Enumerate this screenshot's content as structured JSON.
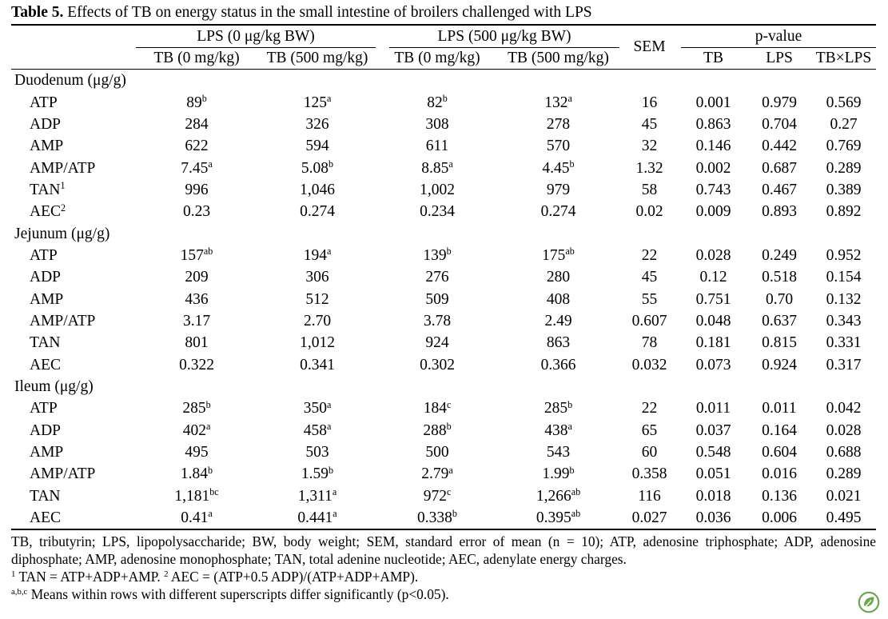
{
  "caption": {
    "label": "Table 5.",
    "text": "Effects of TB on energy status in the small intestine of broilers challenged with LPS"
  },
  "header": {
    "groups": [
      "LPS (0 μg/kg BW)",
      "LPS (500 μg/kg BW)"
    ],
    "sem": "SEM",
    "p_value": "p-value",
    "treatments": [
      "TB (0 mg/kg)",
      "TB (500 mg/kg)",
      "TB (0 mg/kg)",
      "TB (500 mg/kg)"
    ],
    "effects": [
      "TB",
      "LPS",
      "TB×LPS"
    ]
  },
  "sections": [
    {
      "name": "Duodenum (μg/g)",
      "rows": [
        {
          "label": "ATP",
          "cells": [
            {
              "v": "89",
              "sup": "b"
            },
            {
              "v": "125",
              "sup": "a"
            },
            {
              "v": "82",
              "sup": "b"
            },
            {
              "v": "132",
              "sup": "a"
            },
            {
              "v": "16"
            },
            {
              "v": "0.001"
            },
            {
              "v": "0.979"
            },
            {
              "v": "0.569"
            }
          ]
        },
        {
          "label": "ADP",
          "cells": [
            {
              "v": "284"
            },
            {
              "v": "326"
            },
            {
              "v": "308"
            },
            {
              "v": "278"
            },
            {
              "v": "45"
            },
            {
              "v": "0.863"
            },
            {
              "v": "0.704"
            },
            {
              "v": "0.27"
            }
          ]
        },
        {
          "label": "AMP",
          "cells": [
            {
              "v": "622"
            },
            {
              "v": "594"
            },
            {
              "v": "611"
            },
            {
              "v": "570"
            },
            {
              "v": "32"
            },
            {
              "v": "0.146"
            },
            {
              "v": "0.442"
            },
            {
              "v": "0.769"
            }
          ]
        },
        {
          "label": "AMP/ATP",
          "cells": [
            {
              "v": "7.45",
              "sup": "a"
            },
            {
              "v": "5.08",
              "sup": "b"
            },
            {
              "v": "8.85",
              "sup": "a"
            },
            {
              "v": "4.45",
              "sup": "b"
            },
            {
              "v": "1.32"
            },
            {
              "v": "0.002"
            },
            {
              "v": "0.687"
            },
            {
              "v": "0.289"
            }
          ]
        },
        {
          "label": "TAN",
          "label_sup": "1",
          "cells": [
            {
              "v": "996"
            },
            {
              "v": "1,046"
            },
            {
              "v": "1,002"
            },
            {
              "v": "979"
            },
            {
              "v": "58"
            },
            {
              "v": "0.743"
            },
            {
              "v": "0.467"
            },
            {
              "v": "0.389"
            }
          ]
        },
        {
          "label": "AEC",
          "label_sup": "2",
          "cells": [
            {
              "v": "0.23"
            },
            {
              "v": "0.274"
            },
            {
              "v": "0.234"
            },
            {
              "v": "0.274"
            },
            {
              "v": "0.02"
            },
            {
              "v": "0.009"
            },
            {
              "v": "0.893"
            },
            {
              "v": "0.892"
            }
          ]
        }
      ]
    },
    {
      "name": "Jejunum (μg/g)",
      "rows": [
        {
          "label": "ATP",
          "cells": [
            {
              "v": "157",
              "sup": "ab"
            },
            {
              "v": "194",
              "sup": "a"
            },
            {
              "v": "139",
              "sup": "b"
            },
            {
              "v": "175",
              "sup": "ab"
            },
            {
              "v": "22"
            },
            {
              "v": "0.028"
            },
            {
              "v": "0.249"
            },
            {
              "v": "0.952"
            }
          ]
        },
        {
          "label": "ADP",
          "cells": [
            {
              "v": "209"
            },
            {
              "v": "306"
            },
            {
              "v": "276"
            },
            {
              "v": "280"
            },
            {
              "v": "45"
            },
            {
              "v": "0.12"
            },
            {
              "v": "0.518"
            },
            {
              "v": "0.154"
            }
          ]
        },
        {
          "label": "AMP",
          "cells": [
            {
              "v": "436"
            },
            {
              "v": "512"
            },
            {
              "v": "509"
            },
            {
              "v": "408"
            },
            {
              "v": "55"
            },
            {
              "v": "0.751"
            },
            {
              "v": "0.70"
            },
            {
              "v": "0.132"
            }
          ]
        },
        {
          "label": "AMP/ATP",
          "cells": [
            {
              "v": "3.17"
            },
            {
              "v": "2.70"
            },
            {
              "v": "3.78"
            },
            {
              "v": "2.49"
            },
            {
              "v": "0.607"
            },
            {
              "v": "0.048"
            },
            {
              "v": "0.637"
            },
            {
              "v": "0.343"
            }
          ]
        },
        {
          "label": "TAN",
          "cells": [
            {
              "v": "801"
            },
            {
              "v": "1,012"
            },
            {
              "v": "924"
            },
            {
              "v": "863"
            },
            {
              "v": "78"
            },
            {
              "v": "0.181"
            },
            {
              "v": "0.815"
            },
            {
              "v": "0.331"
            }
          ]
        },
        {
          "label": "AEC",
          "cells": [
            {
              "v": "0.322"
            },
            {
              "v": "0.341"
            },
            {
              "v": "0.302"
            },
            {
              "v": "0.366"
            },
            {
              "v": "0.032"
            },
            {
              "v": "0.073"
            },
            {
              "v": "0.924"
            },
            {
              "v": "0.317"
            }
          ]
        }
      ]
    },
    {
      "name": "Ileum (μg/g)",
      "rows": [
        {
          "label": "ATP",
          "cells": [
            {
              "v": "285",
              "sup": "b"
            },
            {
              "v": "350",
              "sup": "a"
            },
            {
              "v": "184",
              "sup": "c"
            },
            {
              "v": "285",
              "sup": "b"
            },
            {
              "v": "22"
            },
            {
              "v": "0.011"
            },
            {
              "v": "0.011"
            },
            {
              "v": "0.042"
            }
          ]
        },
        {
          "label": "ADP",
          "cells": [
            {
              "v": "402",
              "sup": "a"
            },
            {
              "v": "458",
              "sup": "a"
            },
            {
              "v": "288",
              "sup": "b"
            },
            {
              "v": "438",
              "sup": "a"
            },
            {
              "v": "65"
            },
            {
              "v": "0.037"
            },
            {
              "v": "0.164"
            },
            {
              "v": "0.028"
            }
          ]
        },
        {
          "label": "AMP",
          "cells": [
            {
              "v": "495"
            },
            {
              "v": "503"
            },
            {
              "v": "500"
            },
            {
              "v": "543"
            },
            {
              "v": "60"
            },
            {
              "v": "0.548"
            },
            {
              "v": "0.604"
            },
            {
              "v": "0.688"
            }
          ]
        },
        {
          "label": "AMP/ATP",
          "cells": [
            {
              "v": "1.84",
              "sup": "b"
            },
            {
              "v": "1.59",
              "sup": "b"
            },
            {
              "v": "2.79",
              "sup": "a"
            },
            {
              "v": "1.99",
              "sup": "b"
            },
            {
              "v": "0.358"
            },
            {
              "v": "0.051"
            },
            {
              "v": "0.016"
            },
            {
              "v": "0.289"
            }
          ]
        },
        {
          "label": "TAN",
          "cells": [
            {
              "v": "1,181",
              "sup": "bc"
            },
            {
              "v": "1,311",
              "sup": "a"
            },
            {
              "v": "972",
              "sup": "c"
            },
            {
              "v": "1,266",
              "sup": "ab"
            },
            {
              "v": "116"
            },
            {
              "v": "0.018"
            },
            {
              "v": "0.136"
            },
            {
              "v": "0.021"
            }
          ]
        },
        {
          "label": "AEC",
          "cells": [
            {
              "v": "0.41",
              "sup": "a"
            },
            {
              "v": "0.441",
              "sup": "a"
            },
            {
              "v": "0.338",
              "sup": "b"
            },
            {
              "v": "0.395",
              "sup": "ab"
            },
            {
              "v": "0.027"
            },
            {
              "v": "0.036"
            },
            {
              "v": "0.006"
            },
            {
              "v": "0.495"
            }
          ]
        }
      ]
    }
  ],
  "footnotes": {
    "abbreviations": "TB, tributyrin; LPS, lipopolysaccharide; BW, body weight; SEM, standard error of mean (n = 10); ATP, adenosine triphosphate; ADP, adenosine diphosphate; AMP, adenosine monophosphate; TAN, total adenine nucleotide; AEC, adenylate energy charges.",
    "tan_mark": "1",
    "tan_formula": "TAN = ATP+ADP+AMP.",
    "aec_mark": "2",
    "aec_formula": "AEC = (ATP+0.5 ADP)/(ATP+ADP+AMP).",
    "significance_mark": "a,b,c",
    "significance": "Means within rows with different superscripts differ significantly (p<0.05)."
  },
  "icons": {
    "logo": "leaf-badge-icon"
  },
  "colors": {
    "text": "#000000",
    "logo": "#6aa84f"
  }
}
